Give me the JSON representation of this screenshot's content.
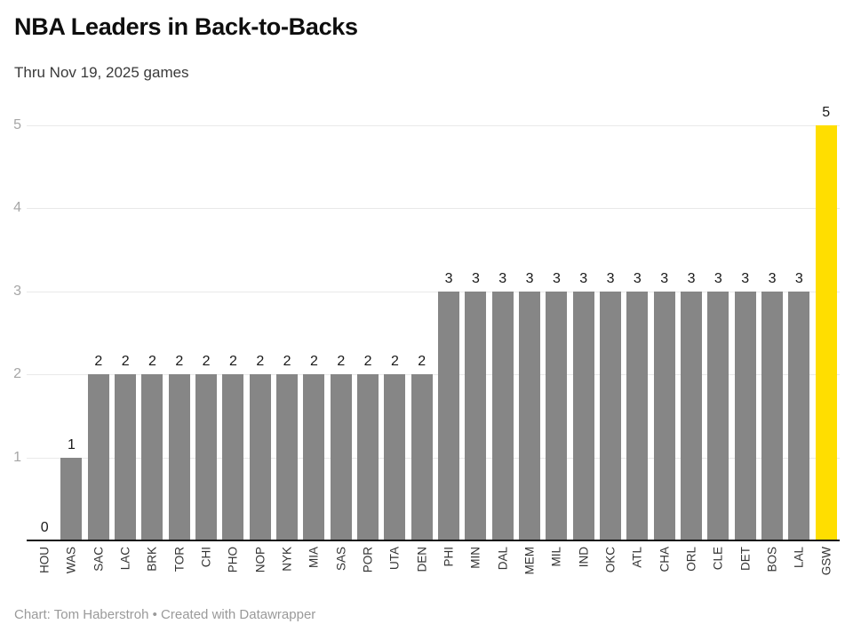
{
  "header": {
    "title": "NBA Leaders in Back-to-Backs",
    "subtitle": "Thru Nov 19, 2025 games"
  },
  "footer": {
    "credit": "Chart: Tom Haberstroh • Created with Datawrapper"
  },
  "chart_data": {
    "type": "bar",
    "title": "NBA Leaders in Back-to-Backs",
    "subtitle": "Thru Nov 19, 2025 games",
    "categories": [
      "HOU",
      "WAS",
      "SAC",
      "LAC",
      "BRK",
      "TOR",
      "CHI",
      "PHO",
      "NOP",
      "NYK",
      "MIA",
      "SAS",
      "POR",
      "UTA",
      "DEN",
      "PHI",
      "MIN",
      "DAL",
      "MEM",
      "MIL",
      "IND",
      "OKC",
      "ATL",
      "CHA",
      "ORL",
      "CLE",
      "DET",
      "BOS",
      "LAL",
      "GSW"
    ],
    "values": [
      0,
      1,
      2,
      2,
      2,
      2,
      2,
      2,
      2,
      2,
      2,
      2,
      2,
      2,
      2,
      3,
      3,
      3,
      3,
      3,
      3,
      3,
      3,
      3,
      3,
      3,
      3,
      3,
      3,
      5
    ],
    "xlabel": "",
    "ylabel": "",
    "ylim": [
      0,
      5
    ],
    "yticks": [
      1,
      2,
      3,
      4,
      5
    ],
    "grid": true,
    "value_labels": true,
    "legend": "none",
    "highlight_category": "GSW",
    "colors": {
      "bar": "#868686",
      "highlight": "#ffde00",
      "gridline": "#e9e9e9",
      "axis": "#161616",
      "value_label": "#191919",
      "tick_label": "#a6a6a6",
      "category_label": "#333333"
    }
  }
}
